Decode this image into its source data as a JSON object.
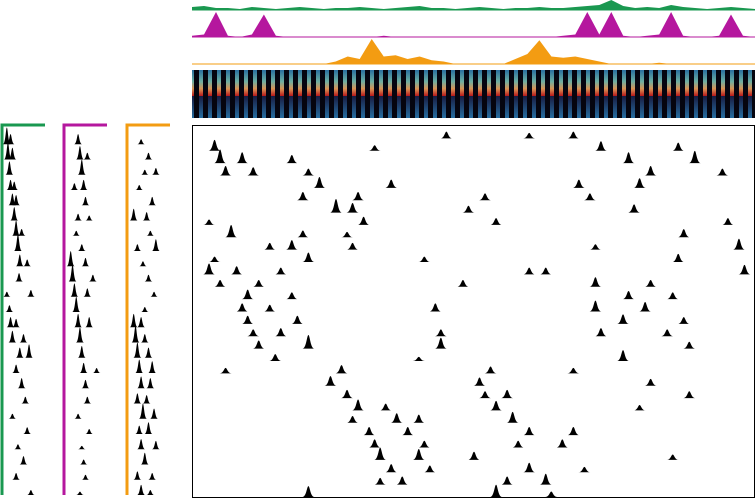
{
  "chart_data": {
    "type": "neural_raster",
    "traces": [
      {
        "color": "#1a9850",
        "values": [
          0.3,
          0.4,
          0.2,
          0.2,
          0.1,
          0.3,
          0.2,
          0.1,
          0.2,
          0.3,
          0.2,
          0.1,
          0.2,
          0.2,
          0.3,
          0.2,
          0.1,
          0.2,
          0.3,
          0.4,
          0.2,
          0.2,
          0.1,
          0.2,
          0.3,
          0.2,
          0.1,
          0.2,
          0.2,
          0.3,
          0.2,
          0.2,
          0.3,
          0.4,
          0.5,
          1,
          0.4,
          0.2,
          0.3,
          0.2,
          0.5,
          0.3,
          0.2,
          0.1,
          0.2,
          0.3,
          0.2,
          0.1
        ]
      },
      {
        "color": "#b5179e",
        "values": [
          0.05,
          0.1,
          1,
          0.05,
          0,
          0.1,
          0.9,
          0.05,
          0,
          0,
          0,
          0,
          0,
          0,
          0,
          0,
          0.05,
          0,
          0,
          0,
          0,
          0,
          0,
          0,
          0,
          0,
          0,
          0,
          0,
          0,
          0,
          0.05,
          0.1,
          1,
          0.1,
          1,
          0.05,
          0,
          0.05,
          0.1,
          1,
          0.05,
          0,
          0,
          0.05,
          0.9,
          0.05,
          0
        ]
      },
      {
        "color": "#f39c12",
        "values": [
          0,
          0,
          0,
          0,
          0,
          0,
          0,
          0,
          0,
          0,
          0,
          0,
          0.1,
          0.3,
          0.2,
          1,
          0.3,
          0.35,
          0.2,
          0.3,
          0.15,
          0.1,
          0,
          0,
          0,
          0,
          0,
          0.2,
          0.4,
          0.95,
          0.3,
          0.25,
          0.3,
          0.2,
          0.1,
          0,
          0,
          0,
          0,
          0.05,
          0,
          0,
          0,
          0,
          0,
          0,
          0,
          0
        ]
      }
    ],
    "side_panels": [
      {
        "color": "#1a9850",
        "rows": [
          [
            [
              5,
              1
            ],
            [
              15,
              0.6
            ]
          ],
          [
            [
              8,
              1
            ],
            [
              20,
              0.7
            ]
          ],
          [
            [
              12,
              0.8
            ]
          ],
          [
            [
              15,
              0.6
            ],
            [
              25,
              0.5
            ]
          ],
          [
            [
              20,
              0.7
            ],
            [
              30,
              0.6
            ]
          ],
          [
            [
              25,
              0.8
            ]
          ],
          [
            [
              30,
              0.9
            ],
            [
              45,
              0.4
            ]
          ],
          [
            [
              35,
              1
            ]
          ],
          [
            [
              40,
              0.7
            ],
            [
              60,
              0.4
            ]
          ],
          [
            [
              38,
              0.5
            ]
          ],
          [
            [
              5,
              0.3
            ],
            [
              70,
              0.4
            ]
          ],
          [
            [
              12,
              0.4
            ]
          ],
          [
            [
              15,
              0.6
            ],
            [
              30,
              0.5
            ]
          ],
          [
            [
              20,
              0.7
            ],
            [
              50,
              0.5
            ]
          ],
          [
            [
              40,
              0.6
            ],
            [
              65,
              0.8
            ]
          ],
          [
            [
              30,
              0.5
            ]
          ],
          [
            [
              45,
              0.6
            ]
          ],
          [
            [
              55,
              0.4
            ]
          ],
          [
            [
              20,
              0.3
            ]
          ],
          [
            [
              60,
              0.4
            ]
          ],
          [
            [
              35,
              0.3
            ]
          ],
          [
            [
              50,
              0.5
            ]
          ],
          [
            [
              30,
              0.4
            ]
          ],
          [
            [
              70,
              0.3
            ]
          ]
        ]
      },
      {
        "color": "#b5179e",
        "rows": [
          [
            [
              30,
              0.6
            ]
          ],
          [
            [
              35,
              0.8
            ],
            [
              55,
              0.4
            ]
          ],
          [
            [
              40,
              0.9
            ]
          ],
          [
            [
              20,
              0.4
            ],
            [
              45,
              0.6
            ]
          ],
          [
            [
              50,
              0.5
            ]
          ],
          [
            [
              30,
              0.4
            ],
            [
              60,
              0.3
            ]
          ],
          [
            [
              25,
              0.3
            ]
          ],
          [
            [
              40,
              0.4
            ]
          ],
          [
            [
              10,
              0.9
            ],
            [
              50,
              0.5
            ]
          ],
          [
            [
              15,
              1
            ],
            [
              70,
              0.4
            ]
          ],
          [
            [
              20,
              0.8
            ],
            [
              55,
              0.5
            ]
          ],
          [
            [
              25,
              0.9
            ]
          ],
          [
            [
              30,
              0.8
            ],
            [
              60,
              0.6
            ]
          ],
          [
            [
              35,
              0.9
            ]
          ],
          [
            [
              40,
              0.7
            ]
          ],
          [
            [
              45,
              0.6
            ],
            [
              80,
              0.3
            ]
          ],
          [
            [
              50,
              0.5
            ]
          ],
          [
            [
              55,
              0.4
            ]
          ],
          [
            [
              30,
              0.3
            ]
          ],
          [
            [
              60,
              0.3
            ]
          ],
          [
            [
              40,
              0.2
            ]
          ],
          [
            [
              45,
              0.3
            ]
          ],
          [
            [
              50,
              0.3
            ]
          ],
          [
            [
              35,
              0.2
            ]
          ]
        ]
      },
      {
        "color": "#f39c12",
        "rows": [
          [
            [
              30,
              0.3
            ]
          ],
          [
            [
              50,
              0.4
            ]
          ],
          [
            [
              40,
              0.3
            ],
            [
              70,
              0.4
            ]
          ],
          [
            [
              25,
              0.3
            ]
          ],
          [
            [
              60,
              0.5
            ]
          ],
          [
            [
              10,
              0.7
            ],
            [
              45,
              0.5
            ]
          ],
          [
            [
              55,
              0.3
            ]
          ],
          [
            [
              20,
              0.4
            ],
            [
              70,
              0.7
            ]
          ],
          [
            [
              35,
              0.3
            ]
          ],
          [
            [
              50,
              0.4
            ]
          ],
          [
            [
              65,
              0.3
            ]
          ],
          [
            [
              40,
              0.3
            ]
          ],
          [
            [
              10,
              0.8
            ],
            [
              30,
              0.6
            ]
          ],
          [
            [
              15,
              1
            ],
            [
              40,
              0.5
            ]
          ],
          [
            [
              20,
              0.9
            ],
            [
              50,
              0.6
            ]
          ],
          [
            [
              25,
              0.8
            ],
            [
              60,
              0.7
            ]
          ],
          [
            [
              30,
              0.7
            ],
            [
              55,
              0.6
            ]
          ],
          [
            [
              20,
              0.6
            ],
            [
              45,
              0.5
            ]
          ],
          [
            [
              35,
              0.9
            ],
            [
              65,
              0.6
            ]
          ],
          [
            [
              25,
              0.5
            ],
            [
              50,
              0.7
            ]
          ],
          [
            [
              30,
              0.6
            ],
            [
              70,
              0.5
            ]
          ],
          [
            [
              40,
              0.7
            ]
          ],
          [
            [
              20,
              0.5
            ],
            [
              60,
              0.4
            ]
          ],
          [
            [
              30,
              0.6
            ],
            [
              55,
              0.3
            ]
          ]
        ]
      }
    ],
    "main_rows": [
      [
        [
          45,
          0.5
        ],
        [
          60,
          0.4
        ],
        [
          68,
          0.5
        ]
      ],
      [
        [
          3,
          0.8
        ],
        [
          32,
          0.4
        ],
        [
          73,
          0.7
        ],
        [
          87,
          0.6
        ]
      ],
      [
        [
          4,
          1
        ],
        [
          8,
          0.8
        ],
        [
          17,
          0.6
        ],
        [
          78,
          0.8
        ],
        [
          90,
          0.9
        ]
      ],
      [
        [
          5,
          0.7
        ],
        [
          10,
          0.6
        ],
        [
          20,
          0.5
        ],
        [
          82,
          0.7
        ],
        [
          95,
          0.5
        ]
      ],
      [
        [
          22,
          0.8
        ],
        [
          35,
          0.6
        ],
        [
          69,
          0.6
        ],
        [
          80,
          0.7
        ]
      ],
      [
        [
          19,
          0.6
        ],
        [
          29,
          0.6
        ],
        [
          52,
          0.5
        ],
        [
          71,
          0.5
        ]
      ],
      [
        [
          25,
          1
        ],
        [
          28,
          0.7
        ],
        [
          49,
          0.5
        ],
        [
          79,
          0.6
        ]
      ],
      [
        [
          2,
          0.4
        ],
        [
          30,
          0.6
        ],
        [
          54,
          0.5
        ],
        [
          96,
          0.5
        ]
      ],
      [
        [
          6,
          0.9
        ],
        [
          19,
          0.5
        ],
        [
          27,
          0.4
        ],
        [
          88,
          0.6
        ]
      ],
      [
        [
          13,
          0.5
        ],
        [
          17,
          0.7
        ],
        [
          28,
          0.5
        ],
        [
          72,
          0.4
        ],
        [
          98,
          0.8
        ]
      ],
      [
        [
          3,
          0.4
        ],
        [
          20,
          0.7
        ],
        [
          41,
          0.4
        ],
        [
          87,
          0.6
        ]
      ],
      [
        [
          2,
          0.8
        ],
        [
          7,
          0.6
        ],
        [
          15,
          0.5
        ],
        [
          60,
          0.5
        ],
        [
          63,
          0.5
        ],
        [
          99,
          0.7
        ]
      ],
      [
        [
          4,
          0.5
        ],
        [
          11,
          0.5
        ],
        [
          48,
          0.5
        ],
        [
          72,
          0.7
        ],
        [
          82,
          0.5
        ]
      ],
      [
        [
          9,
          0.7
        ],
        [
          17,
          0.5
        ],
        [
          78,
          0.6
        ],
        [
          86,
          0.5
        ]
      ],
      [
        [
          8,
          0.6
        ],
        [
          13,
          0.5
        ],
        [
          43,
          0.6
        ],
        [
          72,
          0.8
        ],
        [
          81,
          0.7
        ]
      ],
      [
        [
          9,
          0.6
        ],
        [
          18,
          0.6
        ],
        [
          77,
          0.7
        ],
        [
          88,
          0.5
        ]
      ],
      [
        [
          10,
          0.5
        ],
        [
          15,
          0.6
        ],
        [
          44,
          0.5
        ],
        [
          73,
          0.6
        ],
        [
          85,
          0.5
        ]
      ],
      [
        [
          11,
          0.6
        ],
        [
          20,
          1
        ],
        [
          44,
          0.8
        ],
        [
          89,
          0.5
        ]
      ],
      [
        [
          14,
          0.5
        ],
        [
          40,
          0.3
        ],
        [
          77,
          0.8
        ]
      ],
      [
        [
          5,
          0.4
        ],
        [
          26,
          0.6
        ],
        [
          53,
          0.5
        ],
        [
          68,
          0.4
        ]
      ],
      [
        [
          24,
          0.7
        ],
        [
          51,
          0.6
        ],
        [
          82,
          0.5
        ]
      ],
      [
        [
          27,
          0.6
        ],
        [
          52,
          0.5
        ],
        [
          56,
          0.6
        ],
        [
          89,
          0.5
        ]
      ],
      [
        [
          29,
          0.8
        ],
        [
          34,
          0.5
        ],
        [
          54,
          0.7
        ],
        [
          80,
          0.4
        ]
      ],
      [
        [
          28,
          0.5
        ],
        [
          36,
          0.7
        ],
        [
          40,
          0.6
        ],
        [
          57,
          0.8
        ]
      ],
      [
        [
          31,
          0.6
        ],
        [
          38,
          0.6
        ],
        [
          60,
          0.6
        ],
        [
          68,
          0.6
        ]
      ],
      [
        [
          32,
          0.6
        ],
        [
          41,
          0.5
        ],
        [
          58,
          0.5
        ],
        [
          66,
          0.6
        ]
      ],
      [
        [
          33,
          0.9
        ],
        [
          40,
          0.8
        ],
        [
          50,
          0.6
        ],
        [
          86,
          0.4
        ]
      ],
      [
        [
          35,
          0.6
        ],
        [
          42,
          0.5
        ],
        [
          60,
          0.7
        ],
        [
          70,
          0.4
        ]
      ],
      [
        [
          33,
          0.5
        ],
        [
          37,
          0.6
        ],
        [
          56,
          0.6
        ],
        [
          63,
          0.8
        ]
      ],
      [
        [
          20,
          0.8
        ],
        [
          54,
          0.9
        ],
        [
          64,
          0.4
        ]
      ]
    ]
  }
}
